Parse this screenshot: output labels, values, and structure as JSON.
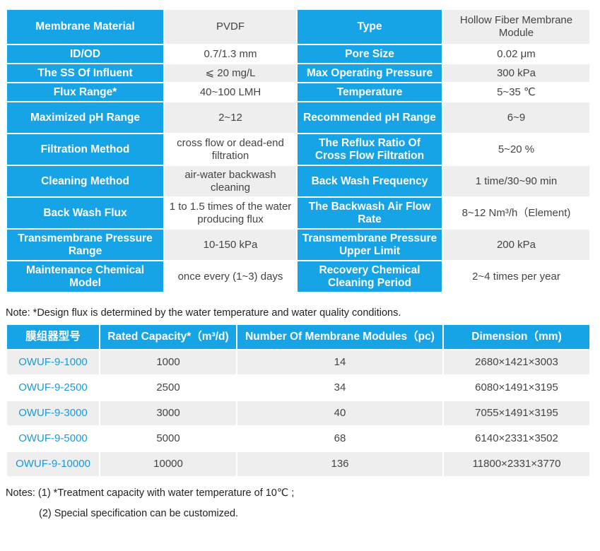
{
  "spec_rows": [
    {
      "h": 48,
      "c": [
        [
          "lbl",
          "Membrane Material"
        ],
        [
          "val",
          "PVDF"
        ],
        [
          "lbl",
          "Type"
        ],
        [
          "val",
          "Hollow Fiber Membrane Module"
        ]
      ]
    },
    {
      "h": 25,
      "c": [
        [
          "lbl",
          "ID/OD"
        ],
        [
          "val",
          "0.7/1.3 mm"
        ],
        [
          "lbl",
          "Pore Size"
        ],
        [
          "val",
          "0.02 μm"
        ]
      ]
    },
    {
      "h": 25,
      "c": [
        [
          "lbl",
          "The SS Of Influent"
        ],
        [
          "val",
          "⩽ 20 mg/L"
        ],
        [
          "lbl",
          "Max Operating Pressure"
        ],
        [
          "val",
          "300 kPa"
        ]
      ]
    },
    {
      "h": 25,
      "c": [
        [
          "lbl",
          "Flux Range*"
        ],
        [
          "val",
          "40~100 LMH"
        ],
        [
          "lbl",
          "Temperature"
        ],
        [
          "val",
          "5~35 ℃"
        ]
      ]
    },
    {
      "h": 43,
      "c": [
        [
          "lbl",
          "Maximized pH Range"
        ],
        [
          "val",
          "2~12"
        ],
        [
          "lbl",
          "Recommended pH Range"
        ],
        [
          "val",
          "6~9"
        ]
      ]
    },
    {
      "h": 43,
      "c": [
        [
          "lbl",
          "Filtration Method"
        ],
        [
          "val",
          "cross flow or dead-end filtration"
        ],
        [
          "lbl",
          "The Reflux Ratio Of Cross Flow Filtration"
        ],
        [
          "val",
          "5~20 %"
        ]
      ]
    },
    {
      "h": 43,
      "c": [
        [
          "lbl",
          "Cleaning Method"
        ],
        [
          "val",
          "air-water backwash cleaning"
        ],
        [
          "lbl",
          "Back Wash Frequency"
        ],
        [
          "val",
          "1 time/30~90 min"
        ]
      ]
    },
    {
      "h": 43,
      "c": [
        [
          "lbl",
          "Back Wash Flux"
        ],
        [
          "val",
          "1 to 1.5 times of the water producing flux"
        ],
        [
          "lbl",
          "The Backwash Air Flow Rate"
        ],
        [
          "val",
          "8~12 Nm³/h（Element)"
        ]
      ]
    },
    {
      "h": 43,
      "c": [
        [
          "lbl",
          "Transmembrane Pressure Range"
        ],
        [
          "val",
          "10-150 kPa"
        ],
        [
          "lbl",
          "Transmembrane Pressure Upper Limit"
        ],
        [
          "val",
          "200 kPa"
        ]
      ]
    },
    {
      "h": 43,
      "c": [
        [
          "lbl",
          "Maintenance Chemical Model"
        ],
        [
          "val",
          "once every (1~3) days"
        ],
        [
          "lbl",
          "Recovery Chemical Cleaning Period"
        ],
        [
          "val",
          "2~4 times per year"
        ]
      ]
    }
  ],
  "note1": "Note: *Design flux is determined by the water temperature and water quality conditions.",
  "model_headers": [
    "膜组器型号",
    "Rated Capacity*（m³/d)",
    "Number Of Membrane Modules（pc)",
    "Dimension（mm)"
  ],
  "model_rows": [
    [
      "OWUF-9-1000",
      "1000",
      "14",
      "2680×1421×3003"
    ],
    [
      "OWUF-9-2500",
      "2500",
      "34",
      "6080×1491×3195"
    ],
    [
      "OWUF-9-3000",
      "3000",
      "40",
      "7055×1491×3195"
    ],
    [
      "OWUF-9-5000",
      "5000",
      "68",
      "6140×2331×3502"
    ],
    [
      "OWUF-9-10000",
      "10000",
      "136",
      "11800×2331×3770"
    ]
  ],
  "notes": {
    "line1": "Notes: (1) *Treatment capacity with water temperature of 10℃ ;",
    "line2": "(2) Special specification can be customized."
  },
  "colors": {
    "header_blue": "#17a4e6",
    "row_gray": "#eeeeee",
    "model_link": "#1a9ad8"
  }
}
